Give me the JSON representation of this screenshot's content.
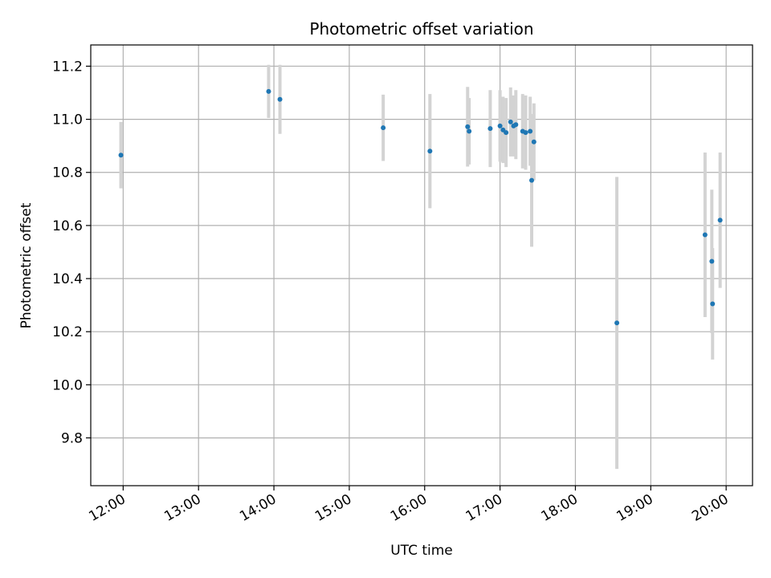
{
  "chart_data": {
    "type": "scatter",
    "title": "Photometric offset variation",
    "xlabel": "UTC time",
    "ylabel": "Photometric offset",
    "x_unit": "hours UTC",
    "xlim": [
      11.57,
      20.35
    ],
    "ylim": [
      9.62,
      11.28
    ],
    "x_ticks": [
      {
        "value": 12,
        "label": "12:00"
      },
      {
        "value": 13,
        "label": "13:00"
      },
      {
        "value": 14,
        "label": "14:00"
      },
      {
        "value": 15,
        "label": "15:00"
      },
      {
        "value": 16,
        "label": "16:00"
      },
      {
        "value": 17,
        "label": "17:00"
      },
      {
        "value": 18,
        "label": "18:00"
      },
      {
        "value": 19,
        "label": "19:00"
      },
      {
        "value": 20,
        "label": "20:00"
      }
    ],
    "y_ticks": [
      {
        "value": 9.8,
        "label": "9.8"
      },
      {
        "value": 10.0,
        "label": "10.0"
      },
      {
        "value": 10.2,
        "label": "10.2"
      },
      {
        "value": 10.4,
        "label": "10.4"
      },
      {
        "value": 10.6,
        "label": "10.6"
      },
      {
        "value": 10.8,
        "label": "10.8"
      },
      {
        "value": 11.0,
        "label": "11.0"
      },
      {
        "value": 11.2,
        "label": "11.2"
      }
    ],
    "grid": true,
    "series": [
      {
        "name": "offset",
        "marker_color": "#1f77b4",
        "errorbar_color": "#d3d3d3",
        "points": [
          {
            "x": 11.97,
            "y": 10.865,
            "err": 0.125
          },
          {
            "x": 13.93,
            "y": 11.105,
            "err": 0.1
          },
          {
            "x": 14.08,
            "y": 11.075,
            "err": 0.13
          },
          {
            "x": 15.45,
            "y": 10.968,
            "err": 0.125
          },
          {
            "x": 16.07,
            "y": 10.88,
            "err": 0.215
          },
          {
            "x": 16.57,
            "y": 10.972,
            "err": 0.15
          },
          {
            "x": 16.59,
            "y": 10.955,
            "err": 0.125
          },
          {
            "x": 16.87,
            "y": 10.965,
            "err": 0.145
          },
          {
            "x": 17.0,
            "y": 10.975,
            "err": 0.135
          },
          {
            "x": 17.04,
            "y": 10.96,
            "err": 0.125
          },
          {
            "x": 17.08,
            "y": 10.95,
            "err": 0.13
          },
          {
            "x": 17.14,
            "y": 10.99,
            "err": 0.13
          },
          {
            "x": 17.18,
            "y": 10.975,
            "err": 0.115
          },
          {
            "x": 17.21,
            "y": 10.98,
            "err": 0.13
          },
          {
            "x": 17.3,
            "y": 10.955,
            "err": 0.14
          },
          {
            "x": 17.34,
            "y": 10.95,
            "err": 0.14
          },
          {
            "x": 17.4,
            "y": 10.955,
            "err": 0.13
          },
          {
            "x": 17.42,
            "y": 10.77,
            "err": 0.25
          },
          {
            "x": 17.45,
            "y": 10.915,
            "err": 0.145
          },
          {
            "x": 18.55,
            "y": 10.233,
            "err": 0.55
          },
          {
            "x": 19.72,
            "y": 10.565,
            "err": 0.31
          },
          {
            "x": 19.81,
            "y": 10.465,
            "err": 0.27
          },
          {
            "x": 19.82,
            "y": 10.305,
            "err": 0.21
          },
          {
            "x": 19.92,
            "y": 10.62,
            "err": 0.255
          }
        ]
      }
    ]
  }
}
